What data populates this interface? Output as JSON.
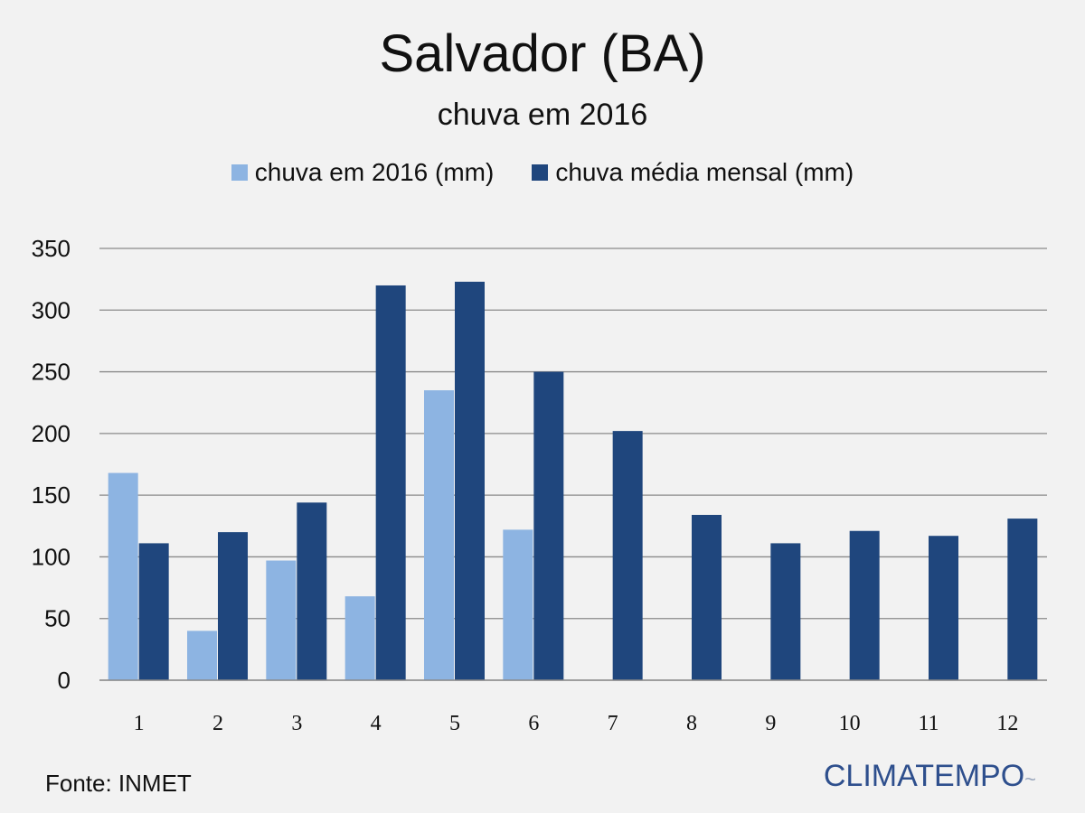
{
  "colors": {
    "background": "#f2f2f2",
    "series_2016": "#8db4e2",
    "series_media": "#1f467d",
    "gridline": "#8a8a8a",
    "brand": "#2e4f8d"
  },
  "chart_data": {
    "type": "bar",
    "title": "Salvador (BA)",
    "subtitle": "chuva em 2016",
    "xlabel": "",
    "ylabel": "",
    "categories": [
      "1",
      "2",
      "3",
      "4",
      "5",
      "6",
      "7",
      "8",
      "9",
      "10",
      "11",
      "12"
    ],
    "series": [
      {
        "name": "chuva em 2016 (mm)",
        "color": "#8db4e2",
        "values": [
          168,
          40,
          97,
          68,
          235,
          122,
          null,
          null,
          null,
          null,
          null,
          null
        ]
      },
      {
        "name": "chuva média mensal (mm)",
        "color": "#1f467d",
        "values": [
          111,
          120,
          144,
          320,
          323,
          250,
          202,
          134,
          111,
          121,
          117,
          131
        ]
      }
    ],
    "yticks": [
      "0",
      "50",
      "100",
      "150",
      "200",
      "250",
      "300",
      "350"
    ],
    "ylim": [
      0,
      350
    ],
    "grid": true,
    "legend_position": "top-center"
  },
  "footer": {
    "source": "Fonte: INMET",
    "brand": "CLIMATEMPO"
  }
}
